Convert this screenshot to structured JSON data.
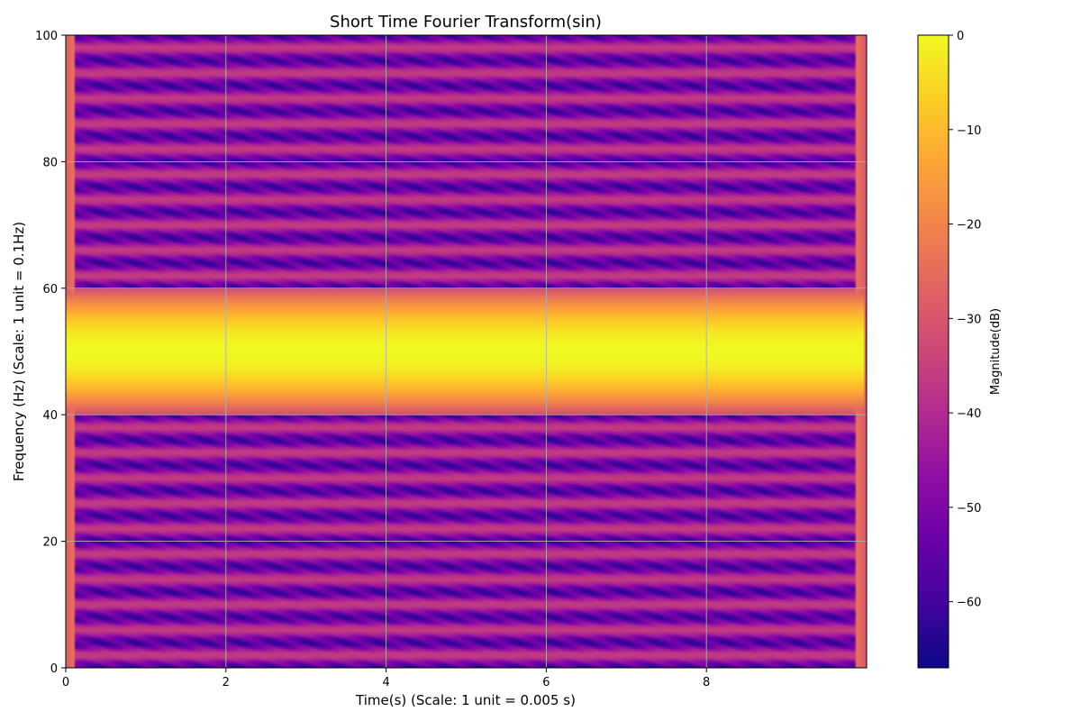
{
  "chart_data": {
    "type": "heatmap",
    "title": "Short Time Fourier Transform(sin)",
    "xlabel": "Time(s) (Scale: 1 unit = 0.005 s)",
    "ylabel": "Frequency (Hz) (Scale: 1 unit = 0.1Hz)",
    "xlim": [
      0,
      10
    ],
    "ylim": [
      0,
      100
    ],
    "x_ticks": [
      0,
      2,
      4,
      6,
      8
    ],
    "y_ticks": [
      0,
      20,
      40,
      60,
      80,
      100
    ],
    "grid": true,
    "colormap": "plasma",
    "colorbar": {
      "label": "Magnitude(dB)",
      "range": [
        -67,
        0
      ],
      "ticks": [
        0,
        -10,
        -20,
        -30,
        -40,
        -50,
        -60
      ],
      "tick_labels": [
        "0",
        "−10",
        "−20",
        "−30",
        "−40",
        "−50",
        "−60"
      ]
    },
    "peak_frequency": 50,
    "peak_magnitude": 0,
    "floor_magnitude": -67,
    "sidelobe_spacing": 4
  }
}
